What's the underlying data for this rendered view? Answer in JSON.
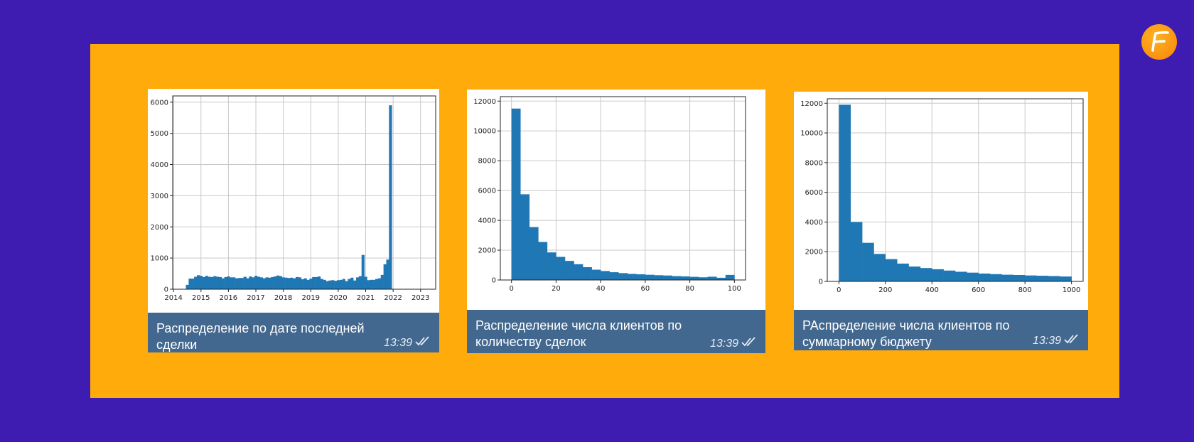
{
  "logo": {
    "letter": "F",
    "color": "#f7860c"
  },
  "colors": {
    "background": "#3f1cb1",
    "panel": "#feab0b",
    "caption": "#43688f",
    "bar": "#1f77b4"
  },
  "cards": [
    {
      "caption": "Распределение по дате последней\nсделки",
      "time": "13:39",
      "status_icon": "double-check-icon"
    },
    {
      "caption": "Распределение числа клиентов по\nколичеству сделок",
      "time": "13:39",
      "status_icon": "double-check-icon"
    },
    {
      "caption": "РАспределение числа клиентов по\nсуммарному бюджету",
      "time": "13:39",
      "status_icon": "double-check-icon"
    }
  ],
  "chart_data": [
    {
      "type": "bar",
      "x_ticks": [
        "2014",
        "2015",
        "2016",
        "2017",
        "2018",
        "2019",
        "2020",
        "2021",
        "2022",
        "2023"
      ],
      "xlim": [
        2013.97,
        2023.55
      ],
      "y_ticks": [
        0,
        1000,
        2000,
        3000,
        4000,
        5000,
        6000
      ],
      "ylim": [
        0,
        6200
      ],
      "grid": true,
      "bin_start": 2014.45,
      "bin_width": 0.1,
      "values": [
        140,
        340,
        340,
        400,
        450,
        430,
        390,
        430,
        400,
        390,
        420,
        400,
        390,
        350,
        390,
        410,
        380,
        380,
        350,
        360,
        360,
        400,
        350,
        410,
        380,
        430,
        400,
        380,
        350,
        380,
        370,
        390,
        410,
        440,
        420,
        380,
        370,
        360,
        370,
        350,
        390,
        380,
        320,
        350,
        300,
        340,
        390,
        390,
        410,
        330,
        300,
        260,
        280,
        290,
        270,
        290,
        300,
        330,
        260,
        330,
        370,
        280,
        380,
        420,
        1100,
        400,
        290,
        300,
        300,
        330,
        350,
        460,
        800,
        950,
        5900,
        0
      ]
    },
    {
      "type": "bar",
      "x_ticks": [
        "0",
        "20",
        "40",
        "60",
        "80",
        "100"
      ],
      "xlim": [
        -5,
        105
      ],
      "y_ticks": [
        0,
        2000,
        4000,
        6000,
        8000,
        10000,
        12000
      ],
      "ylim": [
        0,
        12300
      ],
      "grid": true,
      "bin_start": 0,
      "bin_width": 4,
      "values": [
        11500,
        5750,
        3550,
        2550,
        1850,
        1550,
        1280,
        1060,
        860,
        690,
        600,
        520,
        460,
        410,
        380,
        350,
        320,
        300,
        260,
        240,
        210,
        180,
        220,
        150,
        340
      ]
    },
    {
      "type": "bar",
      "x_ticks": [
        "0",
        "200",
        "400",
        "600",
        "800",
        "1000"
      ],
      "xlim": [
        -50,
        1050
      ],
      "y_ticks": [
        0,
        2000,
        4000,
        6000,
        8000,
        10000,
        12000
      ],
      "ylim": [
        0,
        12300
      ],
      "grid": true,
      "bin_start": 0,
      "bin_width": 50,
      "values": [
        11900,
        4000,
        2600,
        1850,
        1500,
        1200,
        1000,
        900,
        820,
        730,
        650,
        590,
        530,
        490,
        450,
        430,
        400,
        380,
        360,
        330
      ]
    }
  ]
}
